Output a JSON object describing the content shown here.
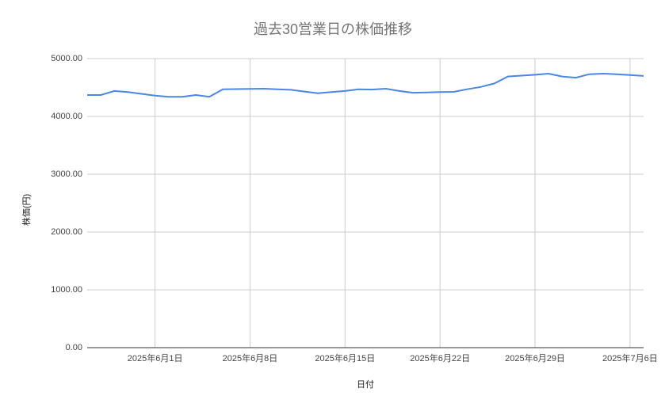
{
  "chart_data": {
    "type": "line",
    "title": "過去30営業日の株価推移",
    "x_label": "日付",
    "y_label": "株価(円)",
    "x": [
      "2025-05-27",
      "2025-05-28",
      "2025-05-29",
      "2025-05-30",
      "2025-05-31",
      "2025-06-01",
      "2025-06-02",
      "2025-06-03",
      "2025-06-04",
      "2025-06-05",
      "2025-06-06",
      "2025-06-07",
      "2025-06-08",
      "2025-06-09",
      "2025-06-10",
      "2025-06-11",
      "2025-06-12",
      "2025-06-13",
      "2025-06-14",
      "2025-06-15",
      "2025-06-16",
      "2025-06-17",
      "2025-06-18",
      "2025-06-19",
      "2025-06-20",
      "2025-06-21",
      "2025-06-22",
      "2025-06-23",
      "2025-06-24",
      "2025-06-25",
      "2025-06-26",
      "2025-06-27",
      "2025-06-28",
      "2025-06-29",
      "2025-06-30",
      "2025-07-01",
      "2025-07-02",
      "2025-07-03",
      "2025-07-04",
      "2025-07-05",
      "2025-07-06",
      "2025-07-07"
    ],
    "series": [
      {
        "name": "株価",
        "color": "#4a86e8",
        "values": [
          4370,
          4370,
          4440,
          4420,
          4390,
          4360,
          4340,
          4340,
          4370,
          4340,
          4470,
          4473,
          4475,
          4480,
          4470,
          4460,
          4430,
          4400,
          4420,
          4440,
          4470,
          4465,
          4480,
          4440,
          4410,
          4415,
          4420,
          4425,
          4470,
          4510,
          4570,
          4690,
          4705,
          4720,
          4740,
          4690,
          4670,
          4730,
          4740,
          4730,
          4715,
          4700
        ]
      }
    ],
    "xlim": [
      "2025-05-27",
      "2025-07-07"
    ],
    "xticks": [
      {
        "value": "2025-06-01",
        "label": "2025年6月1日"
      },
      {
        "value": "2025-06-08",
        "label": "2025年6月8日"
      },
      {
        "value": "2025-06-15",
        "label": "2025年6月15日"
      },
      {
        "value": "2025-06-22",
        "label": "2025年6月22日"
      },
      {
        "value": "2025-06-29",
        "label": "2025年6月29日"
      },
      {
        "value": "2025-07-06",
        "label": "2025年7月6日"
      }
    ],
    "ylim": [
      0,
      5000
    ],
    "yticks": [
      {
        "value": 0,
        "label": "0.00"
      },
      {
        "value": 1000,
        "label": "1000.00"
      },
      {
        "value": 2000,
        "label": "2000.00"
      },
      {
        "value": 3000,
        "label": "3000.00"
      },
      {
        "value": 4000,
        "label": "4000.00"
      },
      {
        "value": 5000,
        "label": "5000.00"
      }
    ],
    "grid": true
  }
}
